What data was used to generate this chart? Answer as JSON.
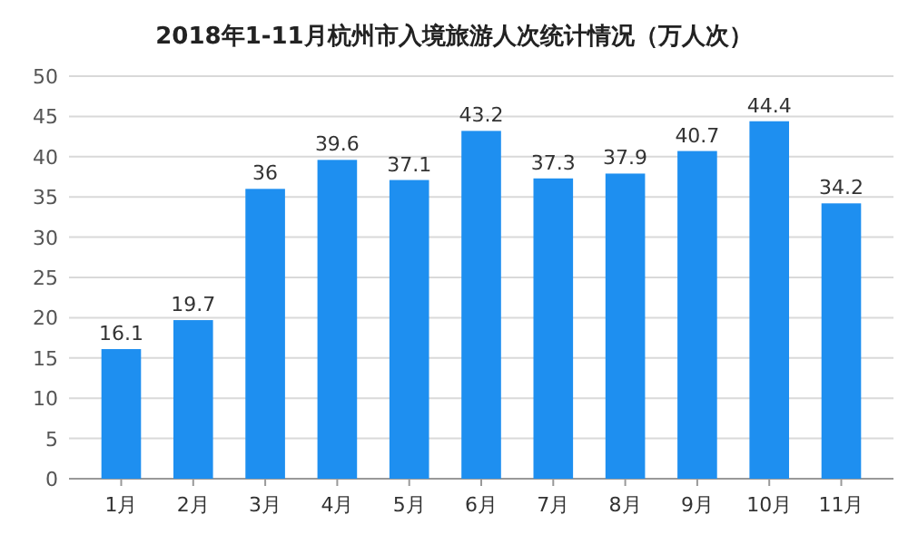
{
  "chart_data": {
    "type": "bar",
    "title": "2018年1-11月杭州市入境旅游人次统计情况（万人次）",
    "categories": [
      "1月",
      "2月",
      "3月",
      "4月",
      "5月",
      "6月",
      "7月",
      "8月",
      "9月",
      "10月",
      "11月"
    ],
    "values": [
      16.1,
      19.7,
      36,
      39.6,
      37.1,
      43.2,
      37.3,
      37.9,
      40.7,
      44.4,
      34.2
    ],
    "color": "#1e8ff0",
    "ylim": [
      0,
      50
    ],
    "yticks": [
      0,
      5,
      10,
      15,
      20,
      25,
      30,
      35,
      40,
      45,
      50
    ],
    "grid": "y",
    "data_labels": true
  }
}
